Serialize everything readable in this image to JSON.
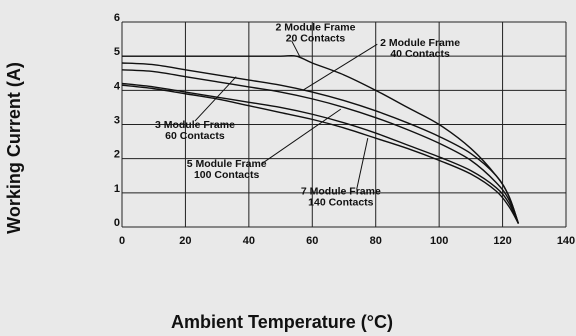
{
  "chart_data": {
    "type": "line",
    "xlabel": "Ambient Temperature (°C)",
    "ylabel": "Working Current (A)",
    "xlim": [
      0,
      140
    ],
    "ylim": [
      0,
      6
    ],
    "xticks": [
      0,
      20,
      40,
      60,
      80,
      100,
      120,
      140
    ],
    "yticks": [
      0,
      1,
      2,
      3,
      4,
      5,
      6
    ],
    "grid": true,
    "series": [
      {
        "points": [
          [
            0,
            5.0
          ],
          [
            10,
            5.0
          ],
          [
            20,
            5.0
          ],
          [
            30,
            5.0
          ],
          [
            40,
            5.0
          ],
          [
            50,
            5.0
          ],
          [
            55,
            5.0
          ],
          [
            60,
            4.8
          ],
          [
            70,
            4.45
          ],
          [
            80,
            4.0
          ],
          [
            90,
            3.5
          ],
          [
            100,
            3.0
          ],
          [
            110,
            2.3
          ],
          [
            118,
            1.5
          ],
          [
            122,
            0.9
          ],
          [
            125,
            0.1
          ]
        ]
      },
      {
        "points": [
          [
            0,
            4.8
          ],
          [
            10,
            4.75
          ],
          [
            20,
            4.6
          ],
          [
            30,
            4.45
          ],
          [
            40,
            4.3
          ],
          [
            50,
            4.15
          ],
          [
            60,
            3.95
          ],
          [
            70,
            3.7
          ],
          [
            80,
            3.4
          ],
          [
            90,
            3.05
          ],
          [
            100,
            2.65
          ],
          [
            110,
            2.15
          ],
          [
            118,
            1.5
          ],
          [
            122,
            0.9
          ],
          [
            125,
            0.1
          ]
        ]
      },
      {
        "points": [
          [
            0,
            4.6
          ],
          [
            10,
            4.55
          ],
          [
            20,
            4.4
          ],
          [
            30,
            4.25
          ],
          [
            40,
            4.1
          ],
          [
            50,
            3.95
          ],
          [
            60,
            3.75
          ],
          [
            70,
            3.5
          ],
          [
            80,
            3.2
          ],
          [
            90,
            2.85
          ],
          [
            100,
            2.45
          ],
          [
            110,
            1.95
          ],
          [
            118,
            1.3
          ],
          [
            122,
            0.8
          ],
          [
            125,
            0.1
          ]
        ]
      },
      {
        "points": [
          [
            0,
            4.2
          ],
          [
            10,
            4.1
          ],
          [
            20,
            3.95
          ],
          [
            30,
            3.8
          ],
          [
            40,
            3.65
          ],
          [
            50,
            3.5
          ],
          [
            60,
            3.3
          ],
          [
            70,
            3.05
          ],
          [
            80,
            2.75
          ],
          [
            90,
            2.4
          ],
          [
            100,
            2.05
          ],
          [
            110,
            1.65
          ],
          [
            118,
            1.15
          ],
          [
            122,
            0.7
          ],
          [
            125,
            0.1
          ]
        ]
      },
      {
        "points": [
          [
            0,
            4.15
          ],
          [
            10,
            4.05
          ],
          [
            20,
            3.9
          ],
          [
            30,
            3.75
          ],
          [
            40,
            3.55
          ],
          [
            50,
            3.35
          ],
          [
            60,
            3.15
          ],
          [
            70,
            2.9
          ],
          [
            80,
            2.6
          ],
          [
            90,
            2.3
          ],
          [
            100,
            1.95
          ],
          [
            110,
            1.55
          ],
          [
            118,
            1.05
          ],
          [
            122,
            0.6
          ],
          [
            125,
            0.1
          ]
        ]
      }
    ],
    "annotations": [
      {
        "line1": "2 Module Frame",
        "line2": "20 Contacts",
        "x": 61,
        "y": 5.75,
        "leader": [
          [
            53.5,
            5.45
          ],
          [
            56,
            5.0
          ]
        ]
      },
      {
        "line1": "2 Module Frame",
        "line2": "40 Contacts",
        "x": 94,
        "y": 5.3,
        "leader": [
          [
            80.5,
            5.35
          ],
          [
            57,
            4.0
          ]
        ]
      },
      {
        "line1": "3 Module Frame",
        "line2": "60 Contacts",
        "x": 23,
        "y": 2.9,
        "leader": [
          [
            23,
            3.1
          ],
          [
            36,
            4.4
          ]
        ]
      },
      {
        "line1": "5 Module Frame",
        "line2": "100 Contacts",
        "x": 33,
        "y": 1.75,
        "leader": [
          [
            44,
            1.85
          ],
          [
            69,
            3.45
          ]
        ]
      },
      {
        "line1": "7 Module Frame",
        "line2": "140 Contacts",
        "x": 69,
        "y": 0.95,
        "leader": [
          [
            74,
            1.1
          ],
          [
            77.5,
            2.6
          ]
        ]
      }
    ]
  }
}
